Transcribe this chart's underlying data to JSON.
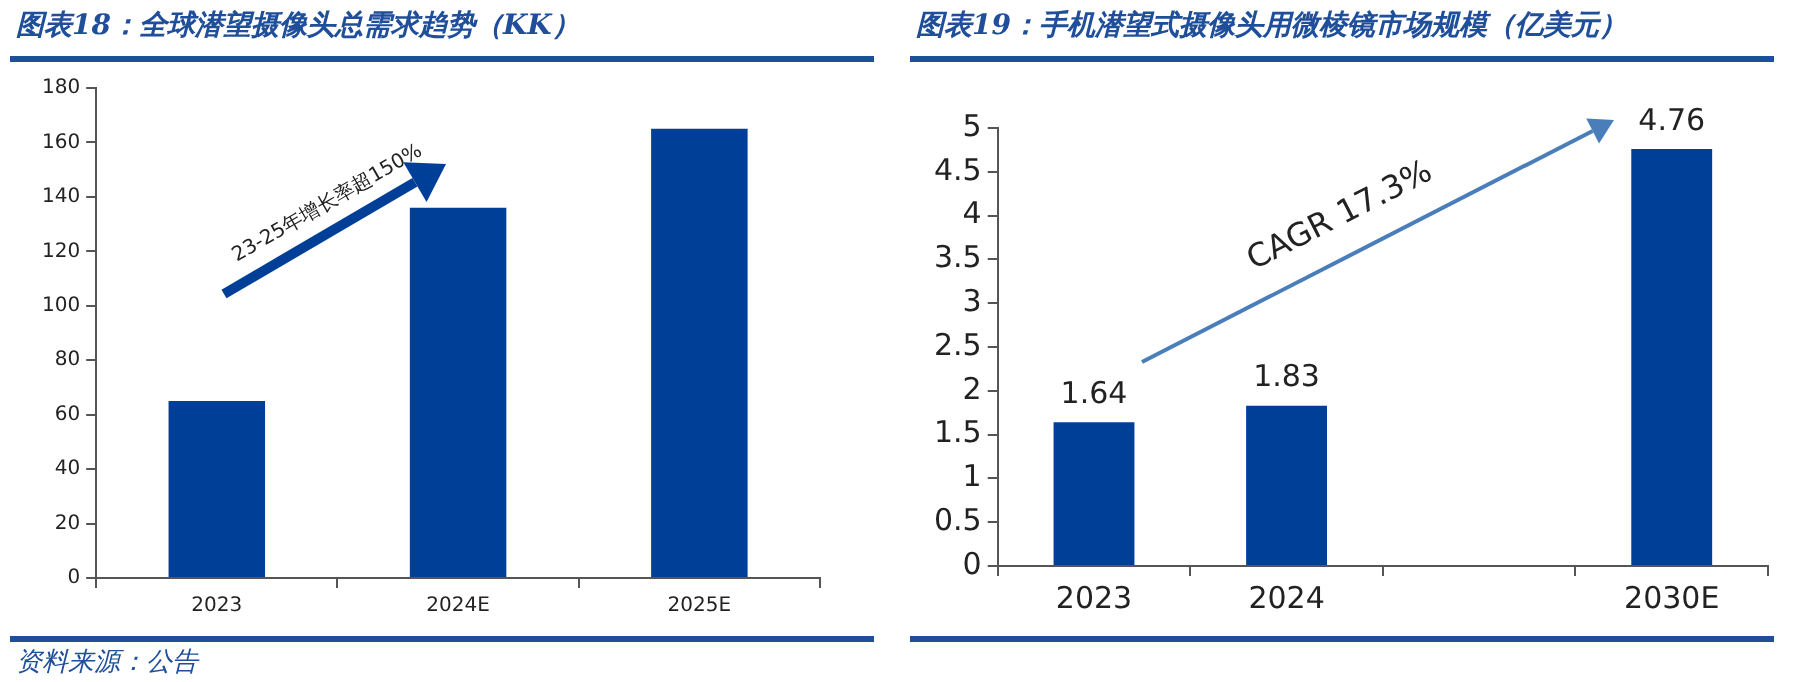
{
  "chart_data": [
    {
      "type": "bar",
      "title": "图表18：全球潜望摄像头总需求趋势（KK）",
      "categories": [
        "2023",
        "2024E",
        "2025E"
      ],
      "values": [
        65,
        136,
        165
      ],
      "color": "#003f98",
      "ylim": [
        0,
        180
      ],
      "yticks": [
        0,
        20,
        40,
        60,
        80,
        100,
        120,
        140,
        160,
        180
      ],
      "grid": false,
      "legend": false,
      "annotations": [
        "23-25年增长率超150%",
        "资料来源：公告"
      ]
    },
    {
      "type": "bar",
      "title": "图表19：手机潜望式摄像头用微棱镜市场规模（亿美元）",
      "categories": [
        "2023",
        "2024",
        null,
        "2030E"
      ],
      "values": [
        1.64,
        1.83,
        null,
        4.76
      ],
      "color": "#003f98",
      "ylim": [
        0,
        5
      ],
      "yticks": [
        0,
        0.5,
        1,
        1.5,
        2,
        2.5,
        3,
        3.5,
        4,
        4.5,
        5
      ],
      "grid": false,
      "legend": false,
      "data_labels": true,
      "annotations": [
        "CAGR 17.3%"
      ]
    }
  ]
}
